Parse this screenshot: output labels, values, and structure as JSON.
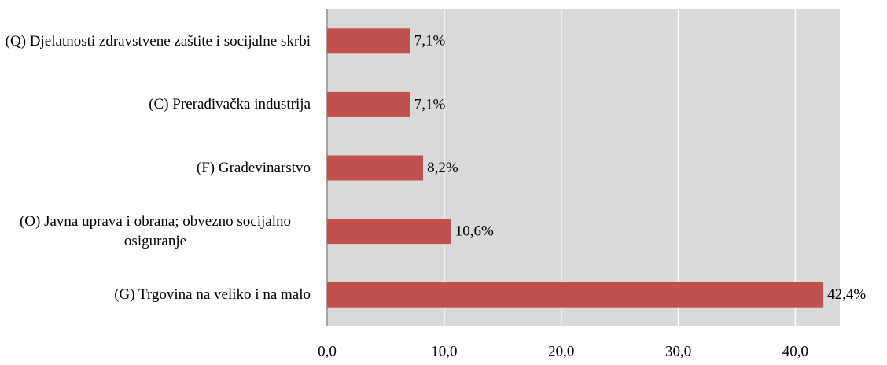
{
  "chart_data": {
    "type": "bar",
    "orientation": "horizontal",
    "categories": [
      "(Q) Djelatnosti zdravstvene zaštite i socijalne skrbi",
      "(C) Prerađivačka industrija",
      "(F) Građevinarstvo",
      "(O) Javna uprava i obrana; obvezno socijalno osiguranje",
      "(G) Trgovina na veliko i na malo"
    ],
    "values": [
      7.1,
      7.1,
      8.2,
      10.6,
      42.4
    ],
    "value_labels": [
      "7,1%",
      "7,1%",
      "8,2%",
      "10,6%",
      "42,4%"
    ],
    "color": "#c0504d",
    "xlim": [
      0,
      43.8
    ],
    "xticks": [
      {
        "value": 0,
        "label": "0,0"
      },
      {
        "value": 10,
        "label": "10,0"
      },
      {
        "value": 20,
        "label": "20,0"
      },
      {
        "value": 30,
        "label": "30,0"
      },
      {
        "value": 40,
        "label": "40,0"
      }
    ],
    "grid": true
  }
}
